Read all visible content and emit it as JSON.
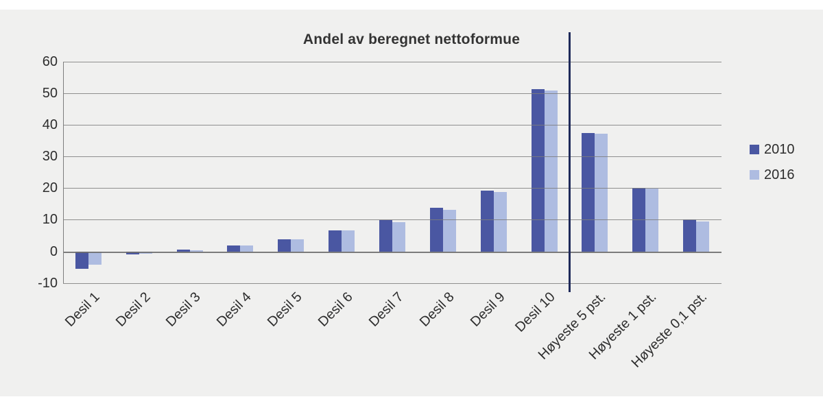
{
  "chart_data": {
    "type": "bar",
    "title": "Andel av beregnet nettoformue",
    "categories": [
      "Desil 1",
      "Desil 2",
      "Desil 3",
      "Desil 4",
      "Desil 5",
      "Desil 6",
      "Desil 7",
      "Desil 8",
      "Desil 9",
      "Desil 10",
      "Høyeste 5 pst.",
      "Høyeste 1 pst.",
      "Høyeste 0,1 pst."
    ],
    "series": [
      {
        "name": "2010",
        "color": "#4a57a2",
        "values": [
          -5.6,
          -1.0,
          0.5,
          1.8,
          3.9,
          6.6,
          9.8,
          13.7,
          19.2,
          51.3,
          37.3,
          20.1,
          10.0
        ]
      },
      {
        "name": "2016",
        "color": "#aebce1",
        "values": [
          -4.2,
          -0.8,
          0.4,
          1.8,
          3.9,
          6.6,
          9.3,
          13.1,
          18.7,
          50.7,
          37.2,
          19.8,
          9.4
        ]
      }
    ],
    "ylim": [
      -10,
      60
    ],
    "yticks": [
      60,
      50,
      40,
      30,
      20,
      10,
      0,
      -10
    ],
    "grid": true,
    "legend_position": "right",
    "divider_after_category": "Desil 10"
  },
  "colors": {
    "panel_bg": "#f0f0ef",
    "gridline": "#7d7d7d",
    "divider": "#1f2a5a",
    "text": "#2d2d2d"
  }
}
